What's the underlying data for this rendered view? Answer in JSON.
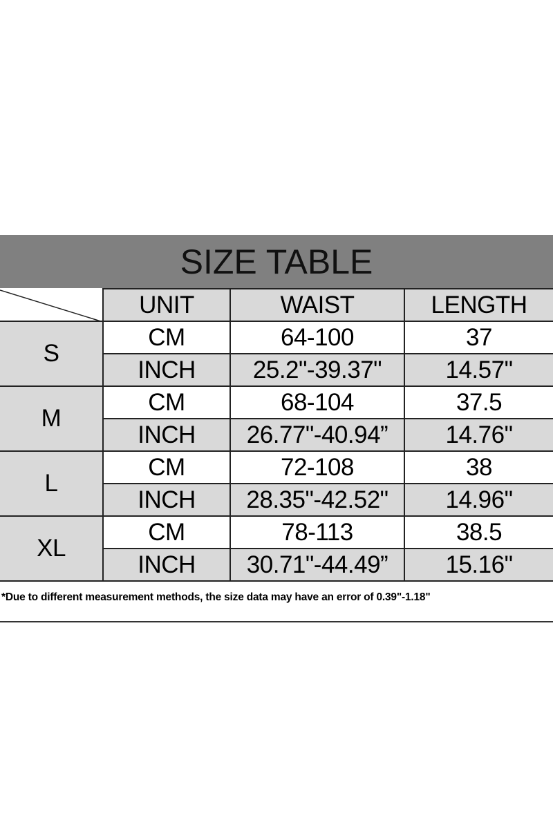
{
  "title": "SIZE TABLE",
  "headers": [
    "UNIT",
    "WAIST",
    "LENGTH"
  ],
  "rows": [
    {
      "size": "S",
      "cm": {
        "unit": "CM",
        "waist": "64-100",
        "length": "37"
      },
      "inch": {
        "unit": "INCH",
        "waist": "25.2\"-39.37\"",
        "length": "14.57\""
      }
    },
    {
      "size": "M",
      "cm": {
        "unit": "CM",
        "waist": "68-104",
        "length": "37.5"
      },
      "inch": {
        "unit": "INCH",
        "waist": "26.77\"-40.94”",
        "length": "14.76\""
      }
    },
    {
      "size": "L",
      "cm": {
        "unit": "CM",
        "waist": "72-108",
        "length": "38"
      },
      "inch": {
        "unit": "INCH",
        "waist": "28.35\"-42.52\"",
        "length": "14.96\""
      }
    },
    {
      "size": "XL",
      "cm": {
        "unit": "CM",
        "waist": "78-113",
        "length": "38.5"
      },
      "inch": {
        "unit": "INCH",
        "waist": "30.71\"-44.49”",
        "length": "15.16\""
      }
    }
  ],
  "note": "*Due to different measurement methods, the size data may have an error of 0.39\"-1.18\"",
  "colors": {
    "title_bg": "#808080",
    "cell_gray": "#d9d9d9"
  }
}
